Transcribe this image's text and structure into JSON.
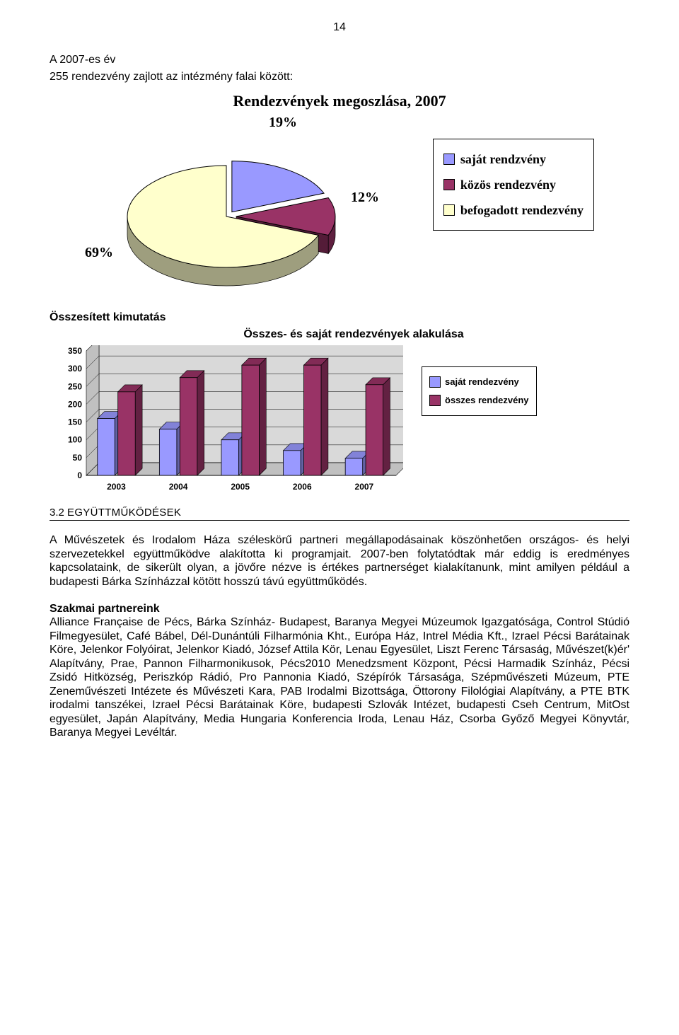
{
  "page_number": "14",
  "intro_line1": "A 2007-es év",
  "intro_line2": "255 rendezvény zajlott az intézmény falai között:",
  "pie": {
    "title": "Rendezvények megoszlása, 2007",
    "labels": {
      "pct69": "69%",
      "pct19": "19%",
      "pct12": "12%"
    },
    "legend": {
      "item1": "saját rendzvény",
      "item2": "közös rendezvény",
      "item3": "befogadott rendezvény"
    },
    "colors": {
      "own": "#9999ff",
      "joint": "#993366",
      "hosted": "#ffffcc",
      "edge": "#000000"
    },
    "slices": {
      "own_pct": 19,
      "joint_pct": 12,
      "hosted_pct": 69
    }
  },
  "summary_heading": "Összesített kimutatás",
  "bar": {
    "title": "Összes- és saját rendezvények alakulása",
    "y_ticks": [
      "0",
      "50",
      "100",
      "150",
      "200",
      "250",
      "300",
      "350"
    ],
    "ylim": 350,
    "categories": [
      "2003",
      "2004",
      "2005",
      "2006",
      "2007"
    ],
    "series": {
      "own": {
        "label": "saját rendezvény",
        "color": "#9999ff",
        "values": [
          160,
          130,
          100,
          70,
          48
        ]
      },
      "total": {
        "label": "összes rendezvény",
        "color": "#993366",
        "values": [
          235,
          275,
          310,
          310,
          255
        ]
      }
    },
    "grid_color": "#000000",
    "face_color": "#c0c0c0",
    "back_wall": "#d9d9d9",
    "bg": "#ffffff"
  },
  "section": {
    "num": "3.2",
    "title": "EGYÜTTMŰKÖDÉSEK"
  },
  "para1": "A Művészetek és Irodalom Háza széleskörű partneri megállapodásainak köszönhetően országos- és helyi szervezetekkel együttműködve alakította ki programjait. 2007-ben folytatódtak már eddig is eredményes kapcsolataink, de sikerült olyan, a jövőre nézve is értékes partnerséget kialakítanunk, mint amilyen például a budapesti Bárka Színházzal kötött hosszú távú együttműködés.",
  "partners_heading": "Szakmai partnereink",
  "para2": "Alliance Française de Pécs, Bárka Színház- Budapest, Baranya Megyei Múzeumok Igazgatósága, Control Stúdió Filmegyesület, Café Bábel, Dél-Dunántúli Filharmónia Kht., Európa Ház, Intrel Média Kft., Izrael Pécsi Barátainak Köre, Jelenkor Folyóirat, Jelenkor Kiadó, József Attila Kör, Lenau Egyesület, Liszt Ferenc Társaság, Művészet(k)ér' Alapítvány, Prae, Pannon Filharmonikusok, Pécs2010 Menedzsment Központ, Pécsi Harmadik Színház, Pécsi Zsidó Hitközség, Periszkóp Rádió, Pro Pannonia Kiadó, Szépírók Társasága, Szépművészeti Múzeum, PTE Zeneművészeti Intézete és Művészeti Kara, PAB Irodalmi Bizottsága, Öttorony Filológiai Alapítvány, a PTE BTK irodalmi tanszékei, Izrael Pécsi Barátainak Köre, budapesti Szlovák Intézet, budapesti Cseh Centrum, MitOst egyesület, Japán Alapítvány, Media Hungaria Konferencia Iroda, Lenau Ház, Csorba Győző Megyei Könyvtár, Baranya Megyei Levéltár."
}
